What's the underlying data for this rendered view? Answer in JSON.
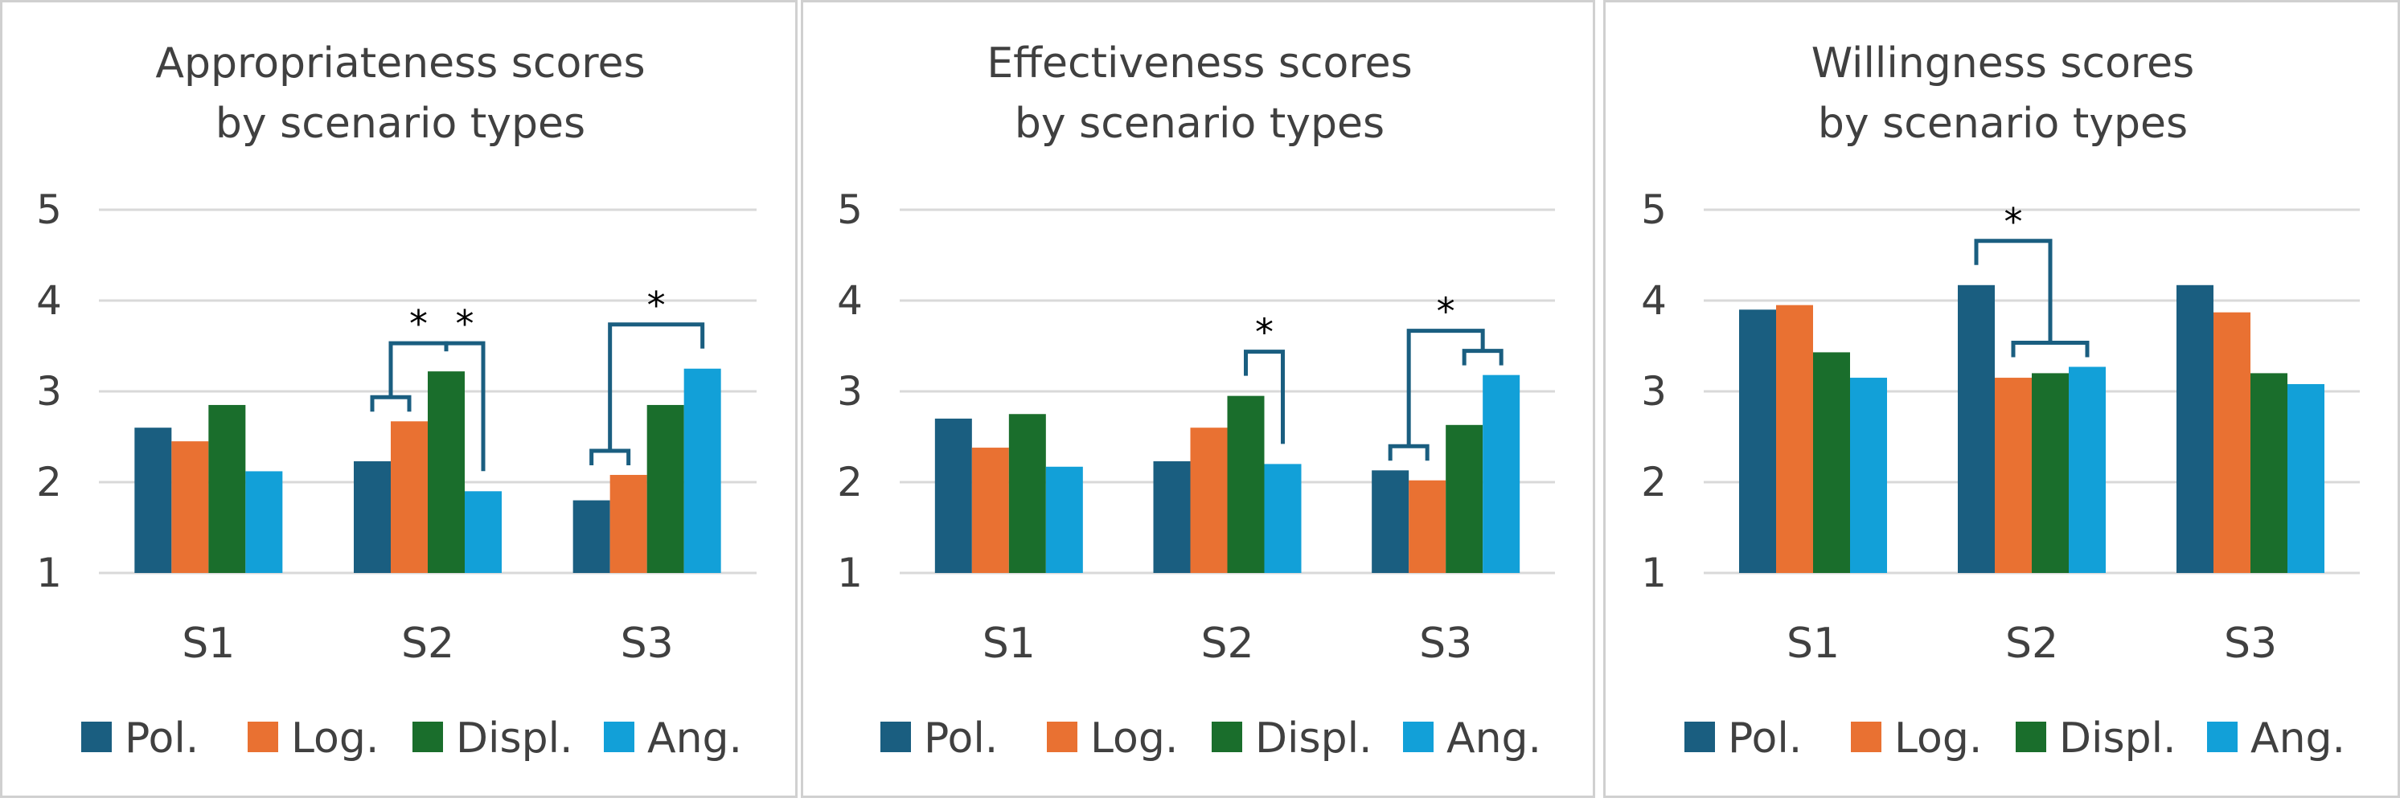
{
  "chart_data": [
    {
      "type": "bar",
      "title": "Appropriateness scores by scenario types",
      "title_lines": [
        "Appropriateness scores",
        "by scenario types"
      ],
      "categories": [
        "S1",
        "S2",
        "S3"
      ],
      "ylim": [
        1,
        5
      ],
      "yticks": [
        "1",
        "2",
        "3",
        "4",
        "5"
      ],
      "grid": true,
      "legend": "bottom",
      "series": [
        {
          "name": "Pol.",
          "color": "#1a5e80",
          "values": [
            2.6,
            2.23,
            1.8
          ]
        },
        {
          "name": "Log.",
          "color": "#e97132",
          "values": [
            2.45,
            2.67,
            2.08
          ]
        },
        {
          "name": "Displ.",
          "color": "#1a6e2c",
          "values": [
            2.85,
            3.22,
            2.85
          ]
        },
        {
          "name": "Ang.",
          "color": "#12a0d8",
          "values": [
            2.12,
            1.9,
            3.25
          ]
        }
      ],
      "significance": [
        {
          "category": "S2",
          "left": [
            "Pol.",
            "Log."
          ],
          "right": [
            "Displ."
          ],
          "label": "*"
        },
        {
          "category": "S2",
          "left": [
            "Displ."
          ],
          "right": [
            "Ang."
          ],
          "label": "*"
        },
        {
          "category": "S3",
          "left": [
            "Pol.",
            "Log."
          ],
          "right": [
            "Ang."
          ],
          "label": "*"
        }
      ]
    },
    {
      "type": "bar",
      "title": "Effectiveness scores by scenario types",
      "title_lines": [
        "Effectiveness scores",
        "by scenario types"
      ],
      "categories": [
        "S1",
        "S2",
        "S3"
      ],
      "ylim": [
        1,
        5
      ],
      "yticks": [
        "1",
        "2",
        "3",
        "4",
        "5"
      ],
      "grid": true,
      "legend": "bottom",
      "series": [
        {
          "name": "Pol.",
          "color": "#1a5e80",
          "values": [
            2.7,
            2.23,
            2.13
          ]
        },
        {
          "name": "Log.",
          "color": "#e97132",
          "values": [
            2.38,
            2.6,
            2.02
          ]
        },
        {
          "name": "Displ.",
          "color": "#1a6e2c",
          "values": [
            2.75,
            2.95,
            2.63
          ]
        },
        {
          "name": "Ang.",
          "color": "#12a0d8",
          "values": [
            2.17,
            2.2,
            3.18
          ]
        }
      ],
      "significance": [
        {
          "category": "S2",
          "left": [
            "Displ."
          ],
          "right": [
            "Ang."
          ],
          "label": "*"
        },
        {
          "category": "S3",
          "left": [
            "Pol.",
            "Log."
          ],
          "right": [
            "Displ.",
            "Ang."
          ],
          "label": "*"
        }
      ]
    },
    {
      "type": "bar",
      "title": "Willingness scores by scenario types",
      "title_lines": [
        "Willingness scores",
        "by scenario types"
      ],
      "categories": [
        "S1",
        "S2",
        "S3"
      ],
      "ylim": [
        1,
        5
      ],
      "yticks": [
        "1",
        "2",
        "3",
        "4",
        "5"
      ],
      "grid": true,
      "legend": "bottom",
      "series": [
        {
          "name": "Pol.",
          "color": "#1a5e80",
          "values": [
            3.9,
            4.17,
            4.17
          ]
        },
        {
          "name": "Log.",
          "color": "#e97132",
          "values": [
            3.95,
            3.15,
            3.87
          ]
        },
        {
          "name": "Displ.",
          "color": "#1a6e2c",
          "values": [
            3.43,
            3.2,
            3.2
          ]
        },
        {
          "name": "Ang.",
          "color": "#12a0d8",
          "values": [
            3.15,
            3.27,
            3.08
          ]
        }
      ],
      "significance": [
        {
          "category": "S2",
          "left": [
            "Pol."
          ],
          "right": [
            "Log.",
            "Displ.",
            "Ang."
          ],
          "label": "*"
        }
      ]
    }
  ],
  "bracket_color": "#1a5e80"
}
